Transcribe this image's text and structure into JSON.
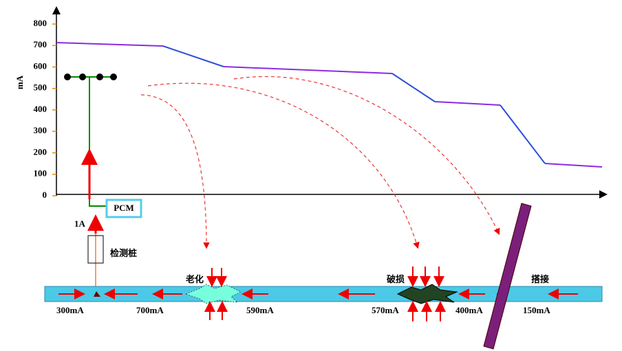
{
  "axis": {
    "label": "mA",
    "ticks": [
      800,
      700,
      600,
      500,
      400,
      300,
      200,
      100,
      0
    ]
  },
  "pcm": "PCM",
  "current_in": "1A",
  "test_post": "检测桩",
  "defects": [
    "老化",
    "破损",
    "搭接"
  ],
  "pipe_currents": [
    "300mA",
    "700mA",
    "590mA",
    "570mA",
    "400mA",
    "150mA"
  ]
}
